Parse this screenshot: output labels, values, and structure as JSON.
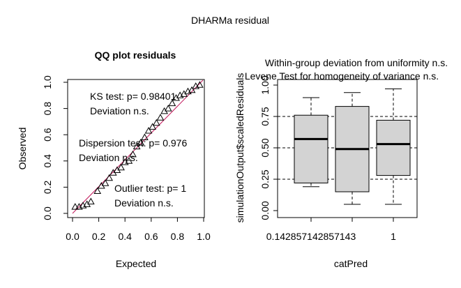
{
  "main_title": "DHARMa residual",
  "chart_data": [
    {
      "type": "scatter",
      "title": "QQ plot residuals",
      "xlabel": "Expected",
      "ylabel": "Observed",
      "xlim": [
        0,
        1
      ],
      "ylim": [
        0,
        1
      ],
      "x_ticks": [
        "0.0",
        "0.2",
        "0.4",
        "0.6",
        "0.8",
        "1.0"
      ],
      "y_ticks": [
        "0.0",
        "0.2",
        "0.4",
        "0.6",
        "0.8",
        "1.0"
      ],
      "reference_line": {
        "from": [
          0,
          0
        ],
        "to": [
          1,
          1
        ],
        "color": "#c2185b"
      },
      "marker": "open-triangle",
      "points": [
        [
          0.02,
          0.05
        ],
        [
          0.05,
          0.05
        ],
        [
          0.08,
          0.06
        ],
        [
          0.11,
          0.07
        ],
        [
          0.14,
          0.09
        ],
        [
          0.19,
          0.17
        ],
        [
          0.22,
          0.21
        ],
        [
          0.25,
          0.23
        ],
        [
          0.28,
          0.27
        ],
        [
          0.31,
          0.31
        ],
        [
          0.34,
          0.33
        ],
        [
          0.37,
          0.35
        ],
        [
          0.4,
          0.39
        ],
        [
          0.43,
          0.4
        ],
        [
          0.46,
          0.45
        ],
        [
          0.49,
          0.51
        ],
        [
          0.52,
          0.54
        ],
        [
          0.55,
          0.58
        ],
        [
          0.58,
          0.63
        ],
        [
          0.61,
          0.66
        ],
        [
          0.64,
          0.69
        ],
        [
          0.67,
          0.73
        ],
        [
          0.7,
          0.78
        ],
        [
          0.73,
          0.8
        ],
        [
          0.76,
          0.84
        ],
        [
          0.79,
          0.88
        ],
        [
          0.82,
          0.9
        ],
        [
          0.85,
          0.91
        ],
        [
          0.88,
          0.93
        ],
        [
          0.91,
          0.94
        ],
        [
          0.94,
          0.97
        ],
        [
          0.97,
          0.98
        ]
      ],
      "annotations": [
        {
          "line1": "KS test: p= 0.98401",
          "line2": "Deviation  n.s."
        },
        {
          "line1": "Dispersion test: p= 0.976",
          "line2": "Deviation  n.s."
        },
        {
          "line1": "Outlier test: p= 1",
          "line2": "Deviation  n.s."
        }
      ]
    },
    {
      "type": "box",
      "title_lines": [
        "Within-group deviation from uniformity n.s.",
        "Levene Test for homogeneity of variance n.s."
      ],
      "xlabel": "catPred",
      "ylabel": "simulationOutput$scaledResiduals",
      "ylim": [
        0,
        1
      ],
      "y_ticks": [
        "0.00",
        "0.25",
        "0.50",
        "0.75",
        "1.00"
      ],
      "x_tick_labels": [
        "0.142857142857143",
        "",
        "1"
      ],
      "reference_lines": [
        0.25,
        0.5,
        0.75
      ],
      "fill_color": "#d3d3d3",
      "boxes": [
        {
          "category": "0.142857142857143",
          "min": 0.19,
          "q1": 0.22,
          "median": 0.57,
          "q3": 0.76,
          "max": 0.9
        },
        {
          "category": "",
          "min": 0.05,
          "q1": 0.15,
          "median": 0.49,
          "q3": 0.83,
          "max": 0.94
        },
        {
          "category": "1",
          "min": 0.05,
          "q1": 0.28,
          "median": 0.53,
          "q3": 0.72,
          "max": 0.97
        }
      ]
    }
  ]
}
